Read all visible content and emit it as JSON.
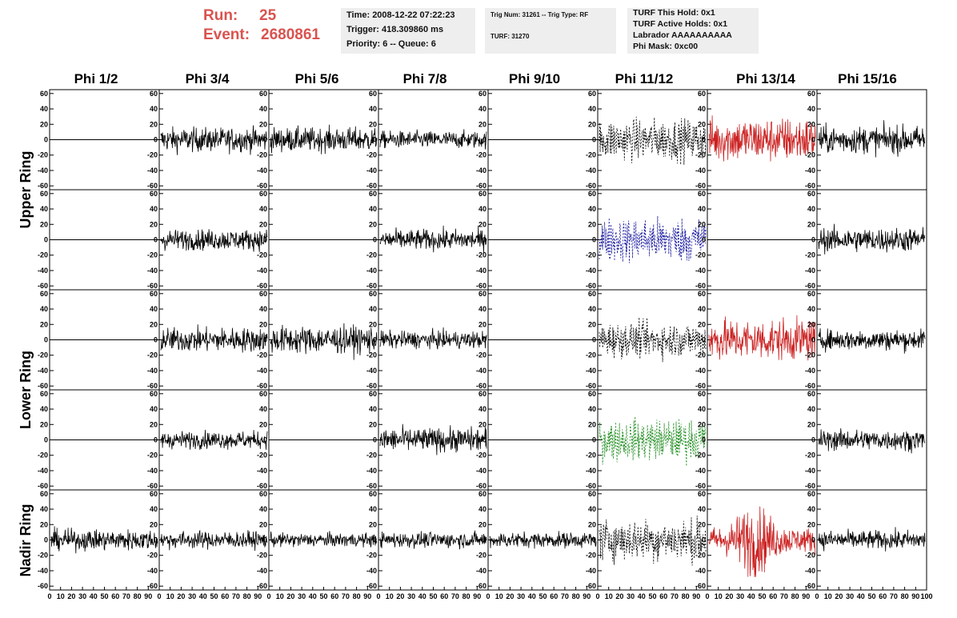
{
  "header": {
    "run_label": "Run:",
    "run_value": "25",
    "event_label": "Event:",
    "event_value": "2680861"
  },
  "info_panels": [
    {
      "lines": [
        "Time: 2008-12-22 07:22:23",
        "Trigger: 418.309860 ms",
        "Priority: 6 -- Queue: 6"
      ]
    },
    {
      "lines": [
        "Trig Num: 31261 -- Trig Type: RF",
        "TURF: 31270"
      ]
    },
    {
      "lines": [
        "TURF This Hold: 0x1",
        "TURF Active Holds: 0x1",
        "Labrador AAAAAAAAAA",
        "Phi Mask: 0xc00"
      ]
    }
  ],
  "chart_data": {
    "type": "line",
    "columns": [
      "Phi 1/2",
      "Phi 3/4",
      "Phi 5/6",
      "Phi 7/8",
      "Phi 9/10",
      "Phi 11/12",
      "Phi 13/14",
      "Phi 15/16"
    ],
    "rows": [
      "Upper Ring",
      "Lower Ring",
      "Nadir Ring"
    ],
    "panel_rows": 5,
    "ylim": [
      -65,
      65
    ],
    "xlim": [
      0,
      100
    ],
    "y_ticks": [
      -60,
      -40,
      -20,
      0,
      20,
      40,
      60
    ],
    "y_tick_labels": [
      "-60",
      "-40",
      "-20",
      "0",
      "20",
      "40",
      "60"
    ],
    "x_tick_labels": [
      "0",
      "10",
      "20",
      "30",
      "40",
      "50",
      "60",
      "70",
      "80",
      "90",
      "100"
    ],
    "colors": {
      "normal": "#000000",
      "triggered": "#cc2222",
      "blue": "#1a1aa0",
      "green": "#1e8c1e",
      "flat": "#000000"
    },
    "panels": [
      [
        "flat",
        "normal:14",
        "normal:14",
        "normal:10",
        "flat",
        "dashed:24",
        "red:26",
        "normal:16"
      ],
      [
        "flat",
        "normal:12",
        "flat",
        "normal:12",
        "flat",
        "blue:26",
        "flat",
        "normal:14"
      ],
      [
        "flat",
        "normal:14",
        "normal:16",
        "normal:10",
        "flat",
        "dashed:20",
        "red:24",
        "normal:12"
      ],
      [
        "flat",
        "normal:10",
        "flat",
        "normal:14",
        "flat",
        "green:24",
        "flat",
        "normal:12"
      ],
      [
        "normal:12",
        "normal:10",
        "normal:8",
        "normal:9",
        "normal:9",
        "dashed:24",
        "red:24",
        "normal:11"
      ]
    ]
  }
}
